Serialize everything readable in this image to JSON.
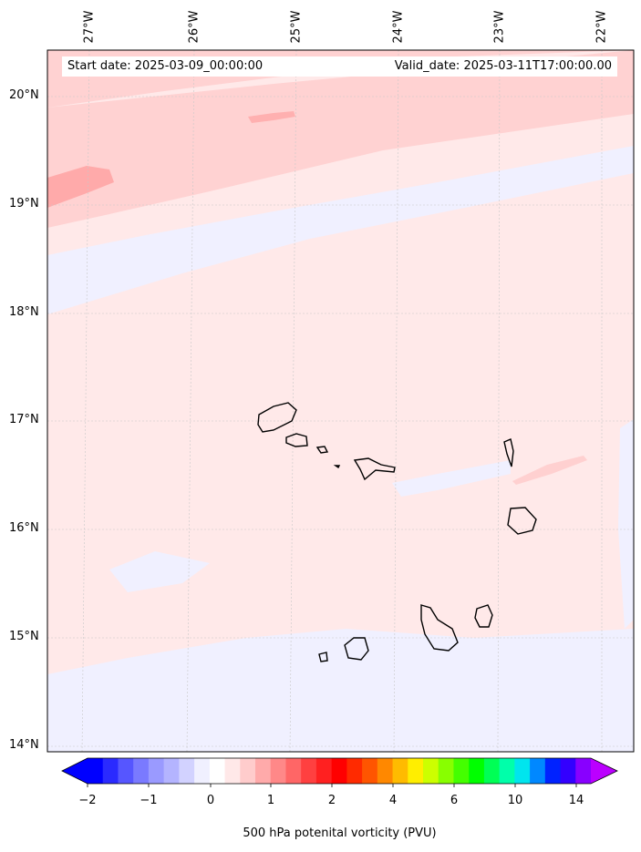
{
  "map": {
    "start_label": "Start date: 2025-03-09_00:00:00",
    "valid_label": "Valid_date: 2025-03-11T17:00:00.00",
    "lon_labels": [
      "27°W",
      "26°W",
      "25°W",
      "24°W",
      "23°W",
      "22°W"
    ],
    "lat_labels": [
      "20°N",
      "19°N",
      "18°N",
      "17°N",
      "16°N",
      "15°N",
      "14°N"
    ]
  },
  "colorbar": {
    "tick_labels": [
      "−2",
      "−1",
      "0",
      "1",
      "2",
      "4",
      "6",
      "10",
      "14"
    ],
    "label": "500 hPa potenital vorticity (PVU)",
    "colors": [
      "#0000ff",
      "#2a2aff",
      "#5656ff",
      "#7a7aff",
      "#9a9aff",
      "#b4b4ff",
      "#d2d2ff",
      "#f0f0ff",
      "#ffffff",
      "#ffe8e8",
      "#ffcccc",
      "#ffaaaa",
      "#ff8888",
      "#ff6666",
      "#ff4040",
      "#ff2020",
      "#ff0000",
      "#ff2a00",
      "#ff5500",
      "#ff8800",
      "#ffbb00",
      "#ffee00",
      "#ccff00",
      "#88ff00",
      "#44ff00",
      "#00ff00",
      "#00ff55",
      "#00ffaa",
      "#00e5ee",
      "#0088ff",
      "#0022ff",
      "#3300ff",
      "#8800ff"
    ],
    "under_color": "#0000ff",
    "over_color": "#bb00ff"
  }
}
